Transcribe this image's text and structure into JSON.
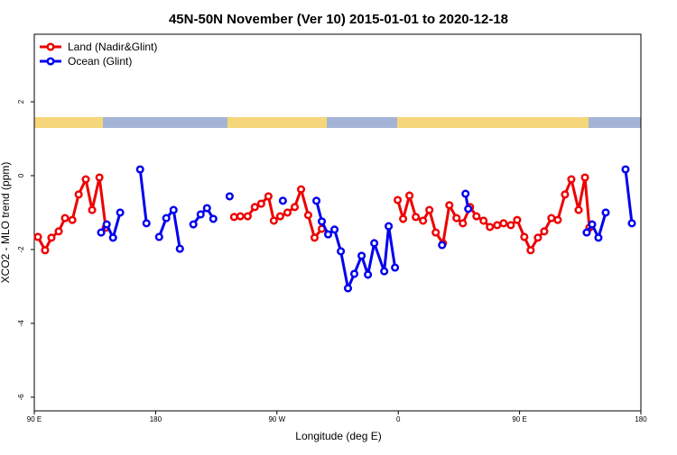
{
  "chart_data": {
    "type": "line",
    "title": "45N-50N November (Ver 10)   2015-01-01 to 2020-12-18",
    "x_label": "Longitude (deg E)",
    "y_label": "XCO2 - MLO trend (ppm)",
    "xlim": [
      90,
      540
    ],
    "ylim": [
      -6.37,
      3.83
    ],
    "xticks": [
      {
        "value": 90,
        "label": "90 E"
      },
      {
        "value": 180,
        "label": "180"
      },
      {
        "value": 270,
        "label": "90 W"
      },
      {
        "value": 360,
        "label": "0"
      },
      {
        "value": 450,
        "label": "90 E"
      },
      {
        "value": 540,
        "label": "180"
      }
    ],
    "yticks": [
      -6,
      -4,
      -2,
      0,
      2
    ],
    "legend": "top-left",
    "series": [
      {
        "name": "Land (Nadir&Glint)",
        "color": "#ee0000",
        "x": [
          92.7,
          98.0,
          102.7,
          108.1,
          112.8,
          118.2,
          122.9,
          128.2,
          132.9,
          138.3,
          143.0,
          null,
          238.2,
          242.9,
          248.3,
          253.6,
          258.3,
          263.7,
          267.7,
          272.4,
          277.8,
          283.2,
          287.9,
          293.2,
          297.9,
          303.3,
          null,
          359.6,
          363.6,
          368.3,
          373.0,
          378.4,
          383.1,
          387.8,
          393.2,
          397.9,
          403.2,
          407.9,
          413.3,
          418.0,
          423.3,
          428.0,
          433.4,
          438.1,
          443.5,
          448.2,
          453.5,
          458.2,
          463.6,
          468.3,
          473.6,
          478.3,
          483.7,
          488.4,
          493.8,
          498.5,
          501.8
        ],
        "values": [
          -1.66,
          -2.02,
          -1.68,
          -1.51,
          -1.15,
          -1.2,
          -0.51,
          -0.1,
          -0.93,
          -0.05,
          -1.41,
          null,
          -1.12,
          -1.1,
          -1.1,
          -0.85,
          -0.76,
          -0.56,
          -1.22,
          -1.1,
          -1.0,
          -0.85,
          -0.37,
          -1.07,
          -1.68,
          -1.44,
          null,
          -0.66,
          -1.17,
          -0.54,
          -1.12,
          -1.22,
          -0.93,
          -1.54,
          -1.83,
          -0.8,
          -1.15,
          -1.29,
          -0.85,
          -1.1,
          -1.22,
          -1.39,
          -1.34,
          -1.29,
          -1.34,
          -1.2,
          -1.66,
          -2.02,
          -1.68,
          -1.51,
          -1.15,
          -1.2,
          -0.51,
          -0.1,
          -0.93,
          -0.05,
          -1.41
        ]
      },
      {
        "name": "Ocean (Glint)",
        "color": "#0000ee",
        "x": [
          139.6,
          143.7,
          148.4,
          153.7,
          null,
          168.5,
          173.2,
          null,
          182.6,
          187.9,
          193.3,
          198.0,
          null,
          208.0,
          213.4,
          218.1,
          222.8,
          null,
          234.9,
          null,
          274.4,
          null,
          299.3,
          303.3,
          308.0,
          312.7,
          317.4,
          322.7,
          327.4,
          332.8,
          337.5,
          342.2,
          349.6,
          352.9,
          357.6,
          null,
          392.5,
          null,
          409.9,
          411.9,
          null,
          499.8,
          503.8,
          508.5,
          513.9,
          null,
          528.6,
          533.3
        ],
        "values": [
          -1.54,
          -1.32,
          -1.68,
          -1.0,
          null,
          0.17,
          -1.29,
          null,
          -1.66,
          -1.15,
          -0.93,
          -1.98,
          null,
          -1.32,
          -1.05,
          -0.88,
          -1.17,
          null,
          -0.56,
          null,
          -0.68,
          null,
          -0.68,
          -1.24,
          -1.59,
          -1.46,
          -2.05,
          -3.05,
          -2.66,
          -2.17,
          -2.68,
          -1.83,
          -2.59,
          -1.37,
          -2.49,
          null,
          -1.88,
          null,
          -0.49,
          -0.9,
          null,
          -1.54,
          -1.32,
          -1.68,
          -1.0,
          null,
          0.17,
          -1.29
        ]
      }
    ]
  }
}
